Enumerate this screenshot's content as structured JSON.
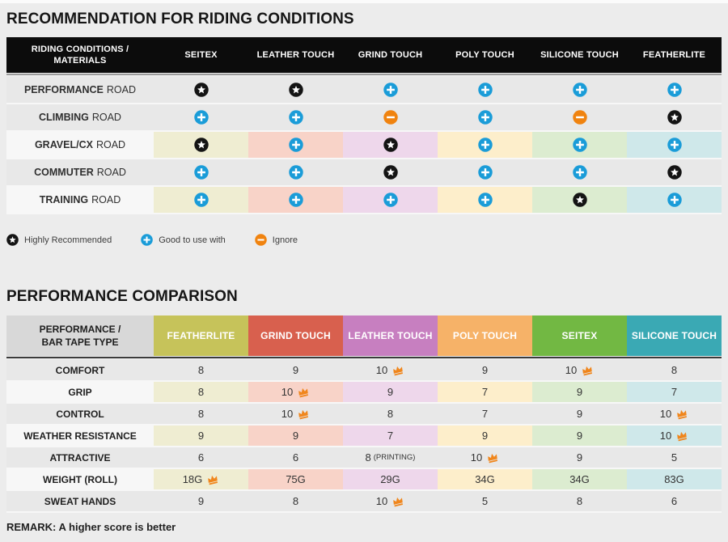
{
  "colors": {
    "page_bg": "#ececec",
    "table1_header_bg": "#0c0c0c",
    "highly_recommended_icon": "#141414",
    "good_to_use_icon": "#1a9cd8",
    "ignore_icon": "#f0830f",
    "crown_icon": "#f0861c",
    "column_header_colors": [
      "#c6c35a",
      "#d8604e",
      "#c77fc0",
      "#f6b268",
      "#72b843",
      "#3aa9b4"
    ],
    "tint_row_colors": [
      "#efedd2",
      "#f8d3c8",
      "#eed7eb",
      "#fdeecb",
      "#dcecd0",
      "#cfe8ea"
    ]
  },
  "chart_data": [
    {
      "type": "table",
      "title": "RECOMMENDATION FOR RIDING CONDITIONS",
      "row_header_line1": "RIDING CONDITIONS /",
      "row_header_line2": "MATERIALS",
      "columns": [
        "SEITEX",
        "LEATHER TOUCH",
        "GRIND TOUCH",
        "POLY TOUCH",
        "SILICONE TOUCH",
        "FEATHERLITE"
      ],
      "rows": [
        {
          "label_bold": "PERFORMANCE",
          "label_rest": "ROAD",
          "tinted": false,
          "cells": [
            "star",
            "star",
            "plus",
            "plus",
            "plus",
            "plus"
          ]
        },
        {
          "label_bold": "CLIMBING",
          "label_rest": "ROAD",
          "tinted": false,
          "cells": [
            "plus",
            "plus",
            "minus",
            "plus",
            "minus",
            "star"
          ]
        },
        {
          "label_bold": "GRAVEL/CX",
          "label_rest": "ROAD",
          "tinted": true,
          "cells": [
            "star",
            "plus",
            "star",
            "plus",
            "plus",
            "plus"
          ]
        },
        {
          "label_bold": "COMMUTER",
          "label_rest": "ROAD",
          "tinted": false,
          "cells": [
            "plus",
            "plus",
            "star",
            "plus",
            "plus",
            "star"
          ]
        },
        {
          "label_bold": "TRAINING",
          "label_rest": "ROAD",
          "tinted": true,
          "cells": [
            "plus",
            "plus",
            "plus",
            "plus",
            "star",
            "plus"
          ]
        }
      ],
      "legend": [
        {
          "icon": "star",
          "label": "Highly Recommended"
        },
        {
          "icon": "plus",
          "label": "Good to use with"
        },
        {
          "icon": "minus",
          "label": "Ignore"
        }
      ]
    },
    {
      "type": "table",
      "title": "PERFORMANCE COMPARISON",
      "row_header_line1": "PERFORMANCE /",
      "row_header_line2": "BAR TAPE TYPE",
      "columns": [
        "FEATHERLITE",
        "GRIND TOUCH",
        "LEATHER TOUCH",
        "POLY TOUCH",
        "SEITEX",
        "SILICONE TOUCH"
      ],
      "rows": [
        {
          "label": "COMFORT",
          "tinted": false,
          "cells": [
            {
              "v": "8"
            },
            {
              "v": "9"
            },
            {
              "v": "10",
              "crown": true
            },
            {
              "v": "9"
            },
            {
              "v": "10",
              "crown": true
            },
            {
              "v": "8"
            }
          ]
        },
        {
          "label": "GRIP",
          "tinted": true,
          "cells": [
            {
              "v": "8"
            },
            {
              "v": "10",
              "crown": true
            },
            {
              "v": "9"
            },
            {
              "v": "7"
            },
            {
              "v": "9"
            },
            {
              "v": "7"
            }
          ]
        },
        {
          "label": "CONTROL",
          "tinted": false,
          "cells": [
            {
              "v": "8"
            },
            {
              "v": "10",
              "crown": true
            },
            {
              "v": "8"
            },
            {
              "v": "7"
            },
            {
              "v": "9"
            },
            {
              "v": "10",
              "crown": true
            }
          ]
        },
        {
          "label": "WEATHER RESISTANCE",
          "tinted": true,
          "cells": [
            {
              "v": "9"
            },
            {
              "v": "9"
            },
            {
              "v": "7"
            },
            {
              "v": "9"
            },
            {
              "v": "9"
            },
            {
              "v": "10",
              "crown": true
            }
          ]
        },
        {
          "label": "ATTRACTIVE",
          "tinted": false,
          "cells": [
            {
              "v": "6"
            },
            {
              "v": "6"
            },
            {
              "v": "8",
              "note": "(PRINTING)"
            },
            {
              "v": "10",
              "crown": true
            },
            {
              "v": "9"
            },
            {
              "v": "5"
            }
          ]
        },
        {
          "label": "WEIGHT (ROLL)",
          "tinted": true,
          "cells": [
            {
              "v": "18G",
              "crown": true
            },
            {
              "v": "75G"
            },
            {
              "v": "29G"
            },
            {
              "v": "34G"
            },
            {
              "v": "34G"
            },
            {
              "v": "83G"
            }
          ]
        },
        {
          "label": "SWEAT HANDS",
          "tinted": false,
          "cells": [
            {
              "v": "9"
            },
            {
              "v": "8"
            },
            {
              "v": "10",
              "crown": true
            },
            {
              "v": "5"
            },
            {
              "v": "8"
            },
            {
              "v": "6"
            }
          ]
        }
      ],
      "remark": "REMARK: A higher score is better"
    }
  ]
}
